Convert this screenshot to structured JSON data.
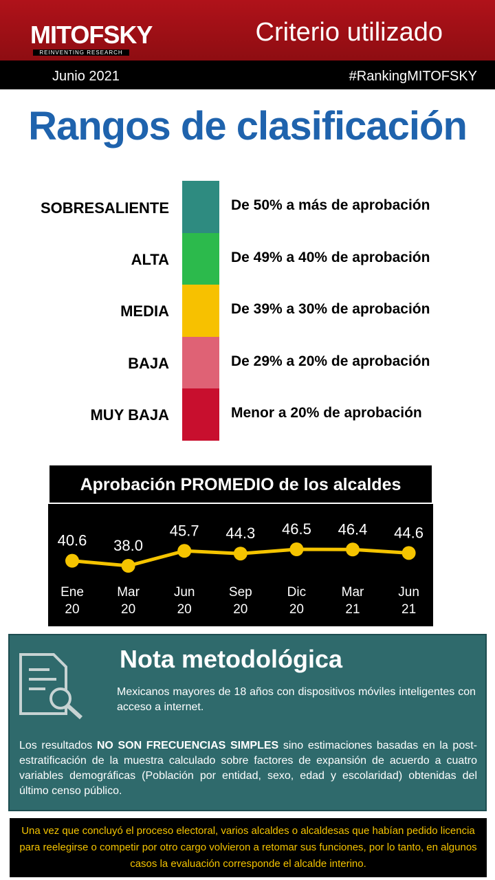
{
  "header": {
    "logo": "MITOFSKY",
    "tagline": "REINVENTING RESEARCH",
    "title": "Criterio utilizado",
    "date": "Junio 2021",
    "hashtag": "#RankingMITOFSKY"
  },
  "ranges": {
    "title": "Rangos de clasificación",
    "items": [
      {
        "label": "SOBRESALIENTE",
        "description": "De 50% a más de aprobación",
        "color": "#2e8b80"
      },
      {
        "label": "ALTA",
        "description": "De 49% a 40% de aprobación",
        "color": "#2cba4c"
      },
      {
        "label": "MEDIA",
        "description": "De 39% a 30% de aprobación",
        "color": "#f7c100"
      },
      {
        "label": "BAJA",
        "description": "De 29% a 20% de aprobación",
        "color": "#df6275"
      },
      {
        "label": "MUY BAJA",
        "description": "Menor a 20% de aprobación",
        "color": "#c80f2e"
      }
    ]
  },
  "chart_data": {
    "type": "line",
    "title": "Aprobación  PROMEDIO  de los alcaldes",
    "categories": [
      "Ene 20",
      "Mar 20",
      "Jun 20",
      "Sep 20",
      "Dic 20",
      "Mar 21",
      "Jun 21"
    ],
    "values": [
      40.6,
      38.0,
      45.7,
      44.3,
      46.5,
      46.4,
      44.6
    ],
    "value_labels": [
      "40.6",
      "38.0",
      "45.7",
      "44.3",
      "46.5",
      "46.4",
      "44.6"
    ],
    "color": "#f5c400"
  },
  "note": {
    "title": "Nota metodológica",
    "paragraph1": "Mexicanos mayores de 18 años con dispositivos móviles inteligentes con acceso a internet.",
    "paragraph2": [
      "Los resultados ",
      "NO SON FRECUENCIAS SIMPLES",
      " sino estimaciones basadas en la post-estratificación de la muestra calculado sobre factores de expansión de acuerdo a cuatro variables demográficas (Población por entidad, sexo, edad y escolaridad) obtenidas del último censo público."
    ]
  },
  "footer": "Una vez que concluyó el proceso electoral, varios alcaldes o alcaldesas que habían pedido licencia para reelegirse o competir por otro cargo volvieron a retomar sus funciones, por lo tanto,  en algunos casos la evaluación corresponde el alcalde interino."
}
